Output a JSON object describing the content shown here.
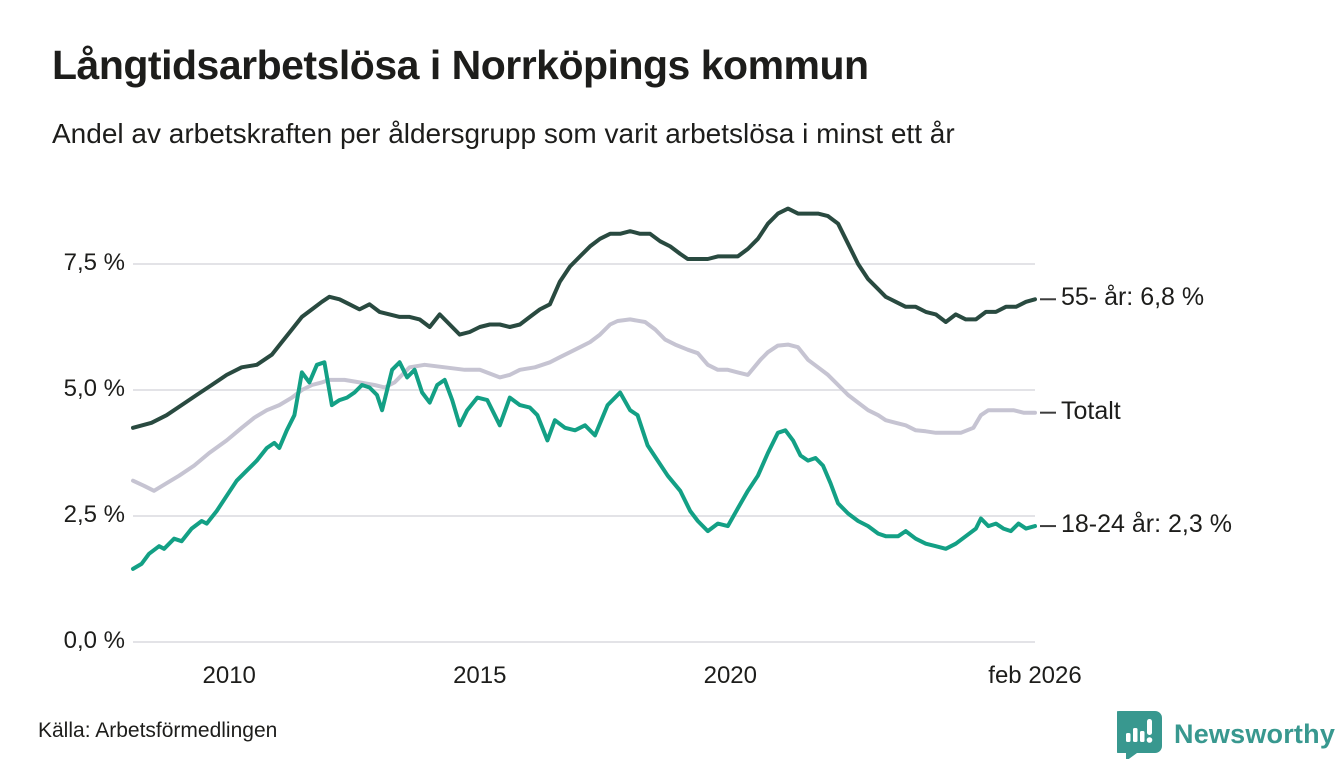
{
  "header": {
    "title": "Långtidsarbetslösa i Norrköpings kommun",
    "subtitle": "Andel av arbetskraften per åldersgrupp som varit arbetslösa i minst ett år"
  },
  "chart_data": {
    "type": "line",
    "title": "Långtidsarbetslösa i Norrköpings kommun",
    "subtitle": "Andel av arbetskraften per åldersgrupp som varit arbetslösa i minst ett år",
    "unit": "percent of labour force",
    "x_domain": [
      2008.08,
      2026.08
    ],
    "ylim": [
      0,
      9.2
    ],
    "grid": true,
    "legend_position": "right-end-labels",
    "grid_color": "#e3e3e7",
    "yticks": [
      {
        "value": 7.5,
        "label": "7,5 %"
      },
      {
        "value": 5.0,
        "label": "5,0 %"
      },
      {
        "value": 2.5,
        "label": "2,5 %"
      },
      {
        "value": 0.0,
        "label": "0,0 %"
      }
    ],
    "xticks": [
      {
        "value": 2010,
        "label": "2010"
      },
      {
        "value": 2015,
        "label": "2015"
      },
      {
        "value": 2020,
        "label": "2020"
      },
      {
        "value": 2026.08,
        "label": "feb 2026"
      }
    ],
    "series": [
      {
        "name": "55- år",
        "end_label": "55- år: 6,8 %",
        "color": "#294a40",
        "points": [
          [
            2008.08,
            4.25
          ],
          [
            2008.45,
            4.35
          ],
          [
            2008.75,
            4.5
          ],
          [
            2009.05,
            4.7
          ],
          [
            2009.35,
            4.9
          ],
          [
            2009.65,
            5.1
          ],
          [
            2009.95,
            5.3
          ],
          [
            2010.25,
            5.45
          ],
          [
            2010.55,
            5.5
          ],
          [
            2010.85,
            5.7
          ],
          [
            2011.05,
            5.95
          ],
          [
            2011.25,
            6.2
          ],
          [
            2011.45,
            6.45
          ],
          [
            2011.65,
            6.6
          ],
          [
            2011.85,
            6.75
          ],
          [
            2012.0,
            6.85
          ],
          [
            2012.2,
            6.8
          ],
          [
            2012.4,
            6.7
          ],
          [
            2012.6,
            6.6
          ],
          [
            2012.8,
            6.7
          ],
          [
            2013.0,
            6.55
          ],
          [
            2013.2,
            6.5
          ],
          [
            2013.4,
            6.45
          ],
          [
            2013.6,
            6.45
          ],
          [
            2013.8,
            6.4
          ],
          [
            2014.0,
            6.25
          ],
          [
            2014.2,
            6.5
          ],
          [
            2014.4,
            6.3
          ],
          [
            2014.6,
            6.1
          ],
          [
            2014.8,
            6.15
          ],
          [
            2015.0,
            6.25
          ],
          [
            2015.2,
            6.3
          ],
          [
            2015.4,
            6.3
          ],
          [
            2015.6,
            6.25
          ],
          [
            2015.8,
            6.3
          ],
          [
            2016.0,
            6.45
          ],
          [
            2016.2,
            6.6
          ],
          [
            2016.4,
            6.7
          ],
          [
            2016.6,
            7.15
          ],
          [
            2016.8,
            7.45
          ],
          [
            2017.0,
            7.65
          ],
          [
            2017.2,
            7.85
          ],
          [
            2017.4,
            8.0
          ],
          [
            2017.6,
            8.1
          ],
          [
            2017.8,
            8.1
          ],
          [
            2018.0,
            8.15
          ],
          [
            2018.2,
            8.1
          ],
          [
            2018.4,
            8.1
          ],
          [
            2018.6,
            7.95
          ],
          [
            2018.8,
            7.85
          ],
          [
            2019.0,
            7.7
          ],
          [
            2019.15,
            7.6
          ],
          [
            2019.35,
            7.6
          ],
          [
            2019.55,
            7.6
          ],
          [
            2019.75,
            7.65
          ],
          [
            2019.95,
            7.65
          ],
          [
            2020.15,
            7.65
          ],
          [
            2020.35,
            7.8
          ],
          [
            2020.55,
            8.0
          ],
          [
            2020.75,
            8.3
          ],
          [
            2020.95,
            8.5
          ],
          [
            2021.15,
            8.6
          ],
          [
            2021.35,
            8.5
          ],
          [
            2021.55,
            8.5
          ],
          [
            2021.75,
            8.5
          ],
          [
            2021.95,
            8.45
          ],
          [
            2022.15,
            8.3
          ],
          [
            2022.35,
            7.9
          ],
          [
            2022.55,
            7.5
          ],
          [
            2022.75,
            7.2
          ],
          [
            2022.95,
            7.0
          ],
          [
            2023.1,
            6.85
          ],
          [
            2023.3,
            6.75
          ],
          [
            2023.5,
            6.65
          ],
          [
            2023.7,
            6.65
          ],
          [
            2023.9,
            6.55
          ],
          [
            2024.1,
            6.5
          ],
          [
            2024.3,
            6.35
          ],
          [
            2024.5,
            6.5
          ],
          [
            2024.7,
            6.4
          ],
          [
            2024.9,
            6.4
          ],
          [
            2025.1,
            6.55
          ],
          [
            2025.3,
            6.55
          ],
          [
            2025.5,
            6.65
          ],
          [
            2025.7,
            6.65
          ],
          [
            2025.9,
            6.75
          ],
          [
            2026.08,
            6.8
          ]
        ]
      },
      {
        "name": "Totalt",
        "end_label": "Totalt",
        "color": "#c6c4d2",
        "points": [
          [
            2008.08,
            3.2
          ],
          [
            2008.3,
            3.1
          ],
          [
            2008.5,
            3.0
          ],
          [
            2008.75,
            3.15
          ],
          [
            2009.0,
            3.3
          ],
          [
            2009.3,
            3.5
          ],
          [
            2009.6,
            3.75
          ],
          [
            2009.95,
            4.0
          ],
          [
            2010.25,
            4.25
          ],
          [
            2010.5,
            4.45
          ],
          [
            2010.75,
            4.6
          ],
          [
            2011.0,
            4.7
          ],
          [
            2011.25,
            4.85
          ],
          [
            2011.45,
            5.0
          ],
          [
            2011.65,
            5.1
          ],
          [
            2011.85,
            5.15
          ],
          [
            2012.0,
            5.2
          ],
          [
            2012.3,
            5.2
          ],
          [
            2012.6,
            5.15
          ],
          [
            2012.9,
            5.1
          ],
          [
            2013.1,
            5.05
          ],
          [
            2013.3,
            5.15
          ],
          [
            2013.6,
            5.45
          ],
          [
            2013.9,
            5.5
          ],
          [
            2014.3,
            5.45
          ],
          [
            2014.7,
            5.4
          ],
          [
            2015.0,
            5.4
          ],
          [
            2015.4,
            5.25
          ],
          [
            2015.6,
            5.3
          ],
          [
            2015.8,
            5.4
          ],
          [
            2016.1,
            5.45
          ],
          [
            2016.4,
            5.55
          ],
          [
            2016.6,
            5.65
          ],
          [
            2016.8,
            5.75
          ],
          [
            2017.0,
            5.85
          ],
          [
            2017.2,
            5.95
          ],
          [
            2017.4,
            6.1
          ],
          [
            2017.6,
            6.3
          ],
          [
            2017.75,
            6.37
          ],
          [
            2018.0,
            6.4
          ],
          [
            2018.3,
            6.35
          ],
          [
            2018.5,
            6.2
          ],
          [
            2018.7,
            6.0
          ],
          [
            2018.9,
            5.9
          ],
          [
            2019.15,
            5.8
          ],
          [
            2019.35,
            5.73
          ],
          [
            2019.55,
            5.5
          ],
          [
            2019.75,
            5.4
          ],
          [
            2019.95,
            5.4
          ],
          [
            2020.15,
            5.35
          ],
          [
            2020.35,
            5.3
          ],
          [
            2020.6,
            5.6
          ],
          [
            2020.75,
            5.75
          ],
          [
            2020.95,
            5.88
          ],
          [
            2021.15,
            5.9
          ],
          [
            2021.35,
            5.85
          ],
          [
            2021.55,
            5.6
          ],
          [
            2021.75,
            5.45
          ],
          [
            2021.95,
            5.3
          ],
          [
            2022.15,
            5.1
          ],
          [
            2022.35,
            4.9
          ],
          [
            2022.55,
            4.75
          ],
          [
            2022.75,
            4.6
          ],
          [
            2022.95,
            4.5
          ],
          [
            2023.1,
            4.4
          ],
          [
            2023.3,
            4.35
          ],
          [
            2023.5,
            4.3
          ],
          [
            2023.7,
            4.2
          ],
          [
            2023.9,
            4.18
          ],
          [
            2024.1,
            4.15
          ],
          [
            2024.35,
            4.15
          ],
          [
            2024.6,
            4.15
          ],
          [
            2024.85,
            4.25
          ],
          [
            2025.0,
            4.5
          ],
          [
            2025.15,
            4.6
          ],
          [
            2025.4,
            4.6
          ],
          [
            2025.65,
            4.6
          ],
          [
            2025.85,
            4.55
          ],
          [
            2026.08,
            4.55
          ]
        ]
      },
      {
        "name": "18-24 år",
        "end_label": "18-24 år: 2,3 %",
        "color": "#13a085",
        "points": [
          [
            2008.08,
            1.45
          ],
          [
            2008.25,
            1.55
          ],
          [
            2008.4,
            1.75
          ],
          [
            2008.6,
            1.9
          ],
          [
            2008.7,
            1.85
          ],
          [
            2008.9,
            2.05
          ],
          [
            2009.05,
            2.0
          ],
          [
            2009.25,
            2.25
          ],
          [
            2009.45,
            2.4
          ],
          [
            2009.55,
            2.35
          ],
          [
            2009.75,
            2.6
          ],
          [
            2009.95,
            2.9
          ],
          [
            2010.15,
            3.2
          ],
          [
            2010.35,
            3.4
          ],
          [
            2010.55,
            3.6
          ],
          [
            2010.75,
            3.85
          ],
          [
            2010.9,
            3.95
          ],
          [
            2011.0,
            3.85
          ],
          [
            2011.15,
            4.2
          ],
          [
            2011.3,
            4.5
          ],
          [
            2011.45,
            5.35
          ],
          [
            2011.6,
            5.15
          ],
          [
            2011.75,
            5.5
          ],
          [
            2011.9,
            5.55
          ],
          [
            2012.05,
            4.7
          ],
          [
            2012.2,
            4.8
          ],
          [
            2012.35,
            4.85
          ],
          [
            2012.5,
            4.95
          ],
          [
            2012.65,
            5.1
          ],
          [
            2012.8,
            5.05
          ],
          [
            2012.95,
            4.9
          ],
          [
            2013.05,
            4.6
          ],
          [
            2013.25,
            5.4
          ],
          [
            2013.4,
            5.55
          ],
          [
            2013.55,
            5.25
          ],
          [
            2013.7,
            5.4
          ],
          [
            2013.85,
            4.95
          ],
          [
            2014.0,
            4.75
          ],
          [
            2014.15,
            5.1
          ],
          [
            2014.3,
            5.2
          ],
          [
            2014.45,
            4.8
          ],
          [
            2014.6,
            4.3
          ],
          [
            2014.75,
            4.6
          ],
          [
            2014.95,
            4.85
          ],
          [
            2015.15,
            4.8
          ],
          [
            2015.4,
            4.3
          ],
          [
            2015.6,
            4.85
          ],
          [
            2015.8,
            4.7
          ],
          [
            2016.0,
            4.65
          ],
          [
            2016.15,
            4.5
          ],
          [
            2016.35,
            4.0
          ],
          [
            2016.5,
            4.4
          ],
          [
            2016.7,
            4.25
          ],
          [
            2016.9,
            4.2
          ],
          [
            2017.1,
            4.3
          ],
          [
            2017.3,
            4.1
          ],
          [
            2017.55,
            4.7
          ],
          [
            2017.8,
            4.95
          ],
          [
            2018.0,
            4.6
          ],
          [
            2018.15,
            4.5
          ],
          [
            2018.35,
            3.9
          ],
          [
            2018.55,
            3.6
          ],
          [
            2018.75,
            3.3
          ],
          [
            2019.0,
            3.0
          ],
          [
            2019.2,
            2.6
          ],
          [
            2019.35,
            2.4
          ],
          [
            2019.55,
            2.2
          ],
          [
            2019.75,
            2.35
          ],
          [
            2019.95,
            2.3
          ],
          [
            2020.15,
            2.65
          ],
          [
            2020.35,
            3.0
          ],
          [
            2020.55,
            3.3
          ],
          [
            2020.75,
            3.75
          ],
          [
            2020.95,
            4.15
          ],
          [
            2021.1,
            4.2
          ],
          [
            2021.25,
            4.0
          ],
          [
            2021.4,
            3.7
          ],
          [
            2021.55,
            3.6
          ],
          [
            2021.7,
            3.65
          ],
          [
            2021.85,
            3.5
          ],
          [
            2022.0,
            3.15
          ],
          [
            2022.15,
            2.75
          ],
          [
            2022.35,
            2.55
          ],
          [
            2022.55,
            2.4
          ],
          [
            2022.75,
            2.3
          ],
          [
            2022.95,
            2.15
          ],
          [
            2023.1,
            2.1
          ],
          [
            2023.35,
            2.1
          ],
          [
            2023.5,
            2.2
          ],
          [
            2023.7,
            2.05
          ],
          [
            2023.9,
            1.95
          ],
          [
            2024.1,
            1.9
          ],
          [
            2024.3,
            1.85
          ],
          [
            2024.5,
            1.95
          ],
          [
            2024.7,
            2.1
          ],
          [
            2024.9,
            2.25
          ],
          [
            2025.0,
            2.45
          ],
          [
            2025.15,
            2.3
          ],
          [
            2025.3,
            2.35
          ],
          [
            2025.45,
            2.25
          ],
          [
            2025.6,
            2.2
          ],
          [
            2025.75,
            2.35
          ],
          [
            2025.9,
            2.25
          ],
          [
            2026.08,
            2.3
          ]
        ]
      }
    ]
  },
  "footer": {
    "source": "Källa: Arbetsförmedlingen",
    "brand": "Newsworthy",
    "brand_color": "#38988f"
  }
}
